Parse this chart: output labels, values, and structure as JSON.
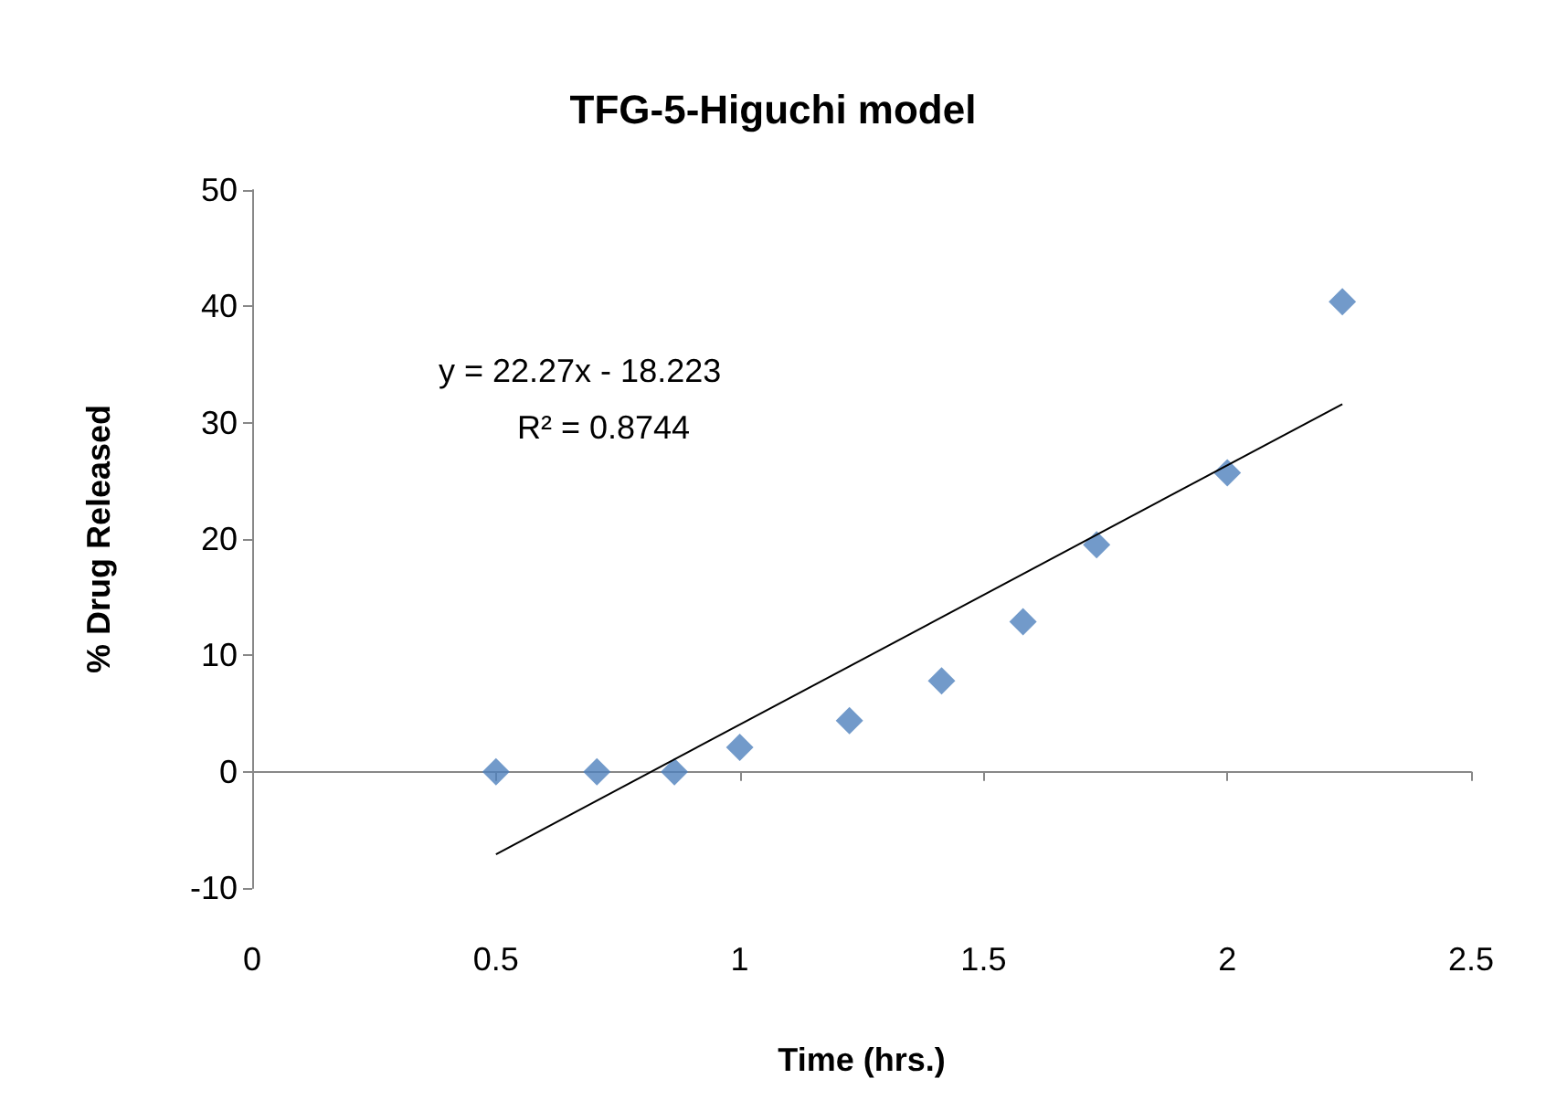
{
  "chart_data": {
    "type": "scatter",
    "title": "TFG-5-Higuchi model",
    "xlabel": "Time (hrs.)",
    "ylabel": "% Drug Released",
    "marker": "diamond",
    "xlim": [
      0,
      2.5
    ],
    "xticks": [
      0,
      0.5,
      1,
      1.5,
      2,
      2.5
    ],
    "ylim": [
      -10,
      50
    ],
    "yticks": [
      -10,
      0,
      10,
      20,
      30,
      40,
      50
    ],
    "series": [
      {
        "color": "#4f81bd",
        "x": [
          0.5,
          0.707,
          0.866,
          1,
          1.225,
          1.414,
          1.581,
          1.732,
          2,
          2.236
        ],
        "values": [
          0,
          0,
          0,
          2.1,
          4.4,
          7.8,
          12.9,
          19.5,
          25.7,
          40.4
        ]
      },
      {
        "type": "line",
        "marker": "none",
        "color": "#000000",
        "x": [
          0.5,
          2.236
        ],
        "values": [
          -7.1,
          31.6
        ]
      }
    ],
    "annotations": [
      "y = 22.27x - 18.223",
      "R² = 0.8744"
    ]
  }
}
